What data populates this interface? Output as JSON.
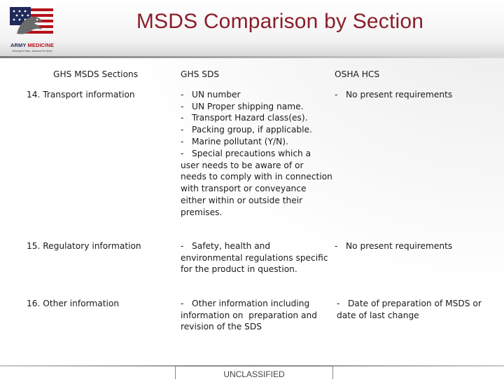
{
  "header": {
    "title": "MSDS Comparison by Section",
    "logo_name": "ARMY",
    "logo_accent": "MEDICINE",
    "logo_tagline": "Serving To Heal...Honored To Serve"
  },
  "table": {
    "columns": [
      "GHS MSDS Sections",
      "GHS SDS",
      "OSHA HCS"
    ],
    "rows": [
      {
        "section": "14. Transport information",
        "ghs_lines": [
          "-   UN number",
          "-   UN Proper shipping name.",
          "-   Transport Hazard class(es).",
          "-   Packing group, if applicable.",
          "-   Marine pollutant (Y/N).",
          "-   Special precautions which a",
          "user needs to be aware of or",
          "needs to comply with in connection",
          "with transport or conveyance",
          "either within or outside their",
          "premises."
        ],
        "osha_lines": [
          "-   No present requirements"
        ]
      },
      {
        "section": "15. Regulatory information",
        "ghs_lines": [
          "-   Safety, health and",
          "environmental regulations specific",
          "for the product in question."
        ],
        "osha_lines": [
          "-   No present requirements"
        ]
      },
      {
        "section": "16. Other information",
        "ghs_lines": [
          "-   Other information including",
          "information on  preparation and",
          "revision of the SDS"
        ],
        "osha_lines": [
          "-   Date of preparation of MSDS or",
          "date of last change"
        ]
      }
    ]
  },
  "footer": {
    "classification": "UNCLASSIFIED"
  },
  "colors": {
    "title": "#8c1d2a",
    "logo_navy": "#1f2a5a",
    "logo_red": "#b5121b"
  }
}
